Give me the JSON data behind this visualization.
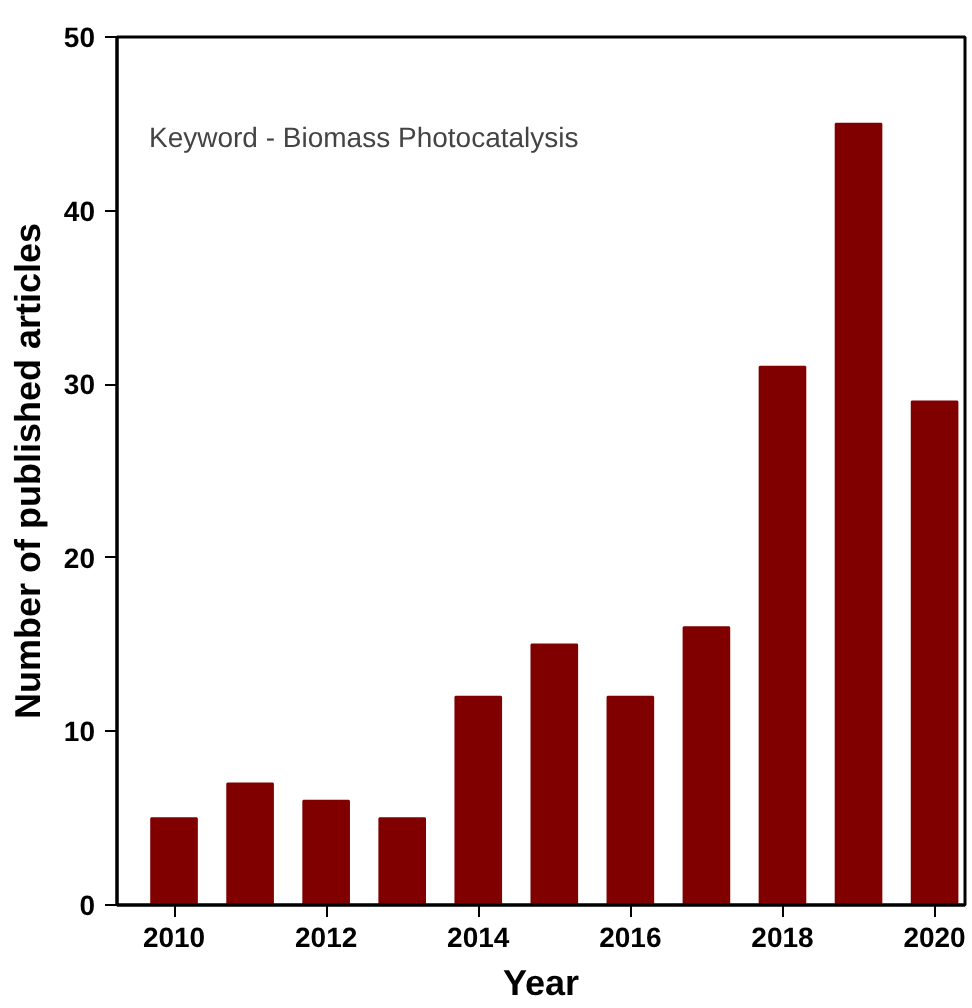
{
  "chart_data": {
    "type": "bar",
    "xlabel": "Year",
    "ylabel": "Number of published articles",
    "annotations": [
      "Keyword - Biomass Photocatalysis"
    ],
    "x": [
      2010,
      2011,
      2012,
      2013,
      2014,
      2015,
      2016,
      2017,
      2018,
      2019,
      2020
    ],
    "values": [
      5,
      7,
      6,
      5,
      12,
      15,
      12,
      16,
      31,
      45,
      29
    ],
    "color": "#800000",
    "xlim": [
      2009.25,
      2020.4
    ],
    "xticks": [
      2010,
      2012,
      2014,
      2016,
      2018,
      2020
    ],
    "ylim": [
      0,
      50
    ],
    "yticks": [
      0,
      10,
      20,
      30,
      40,
      50
    ],
    "grid": false
  }
}
